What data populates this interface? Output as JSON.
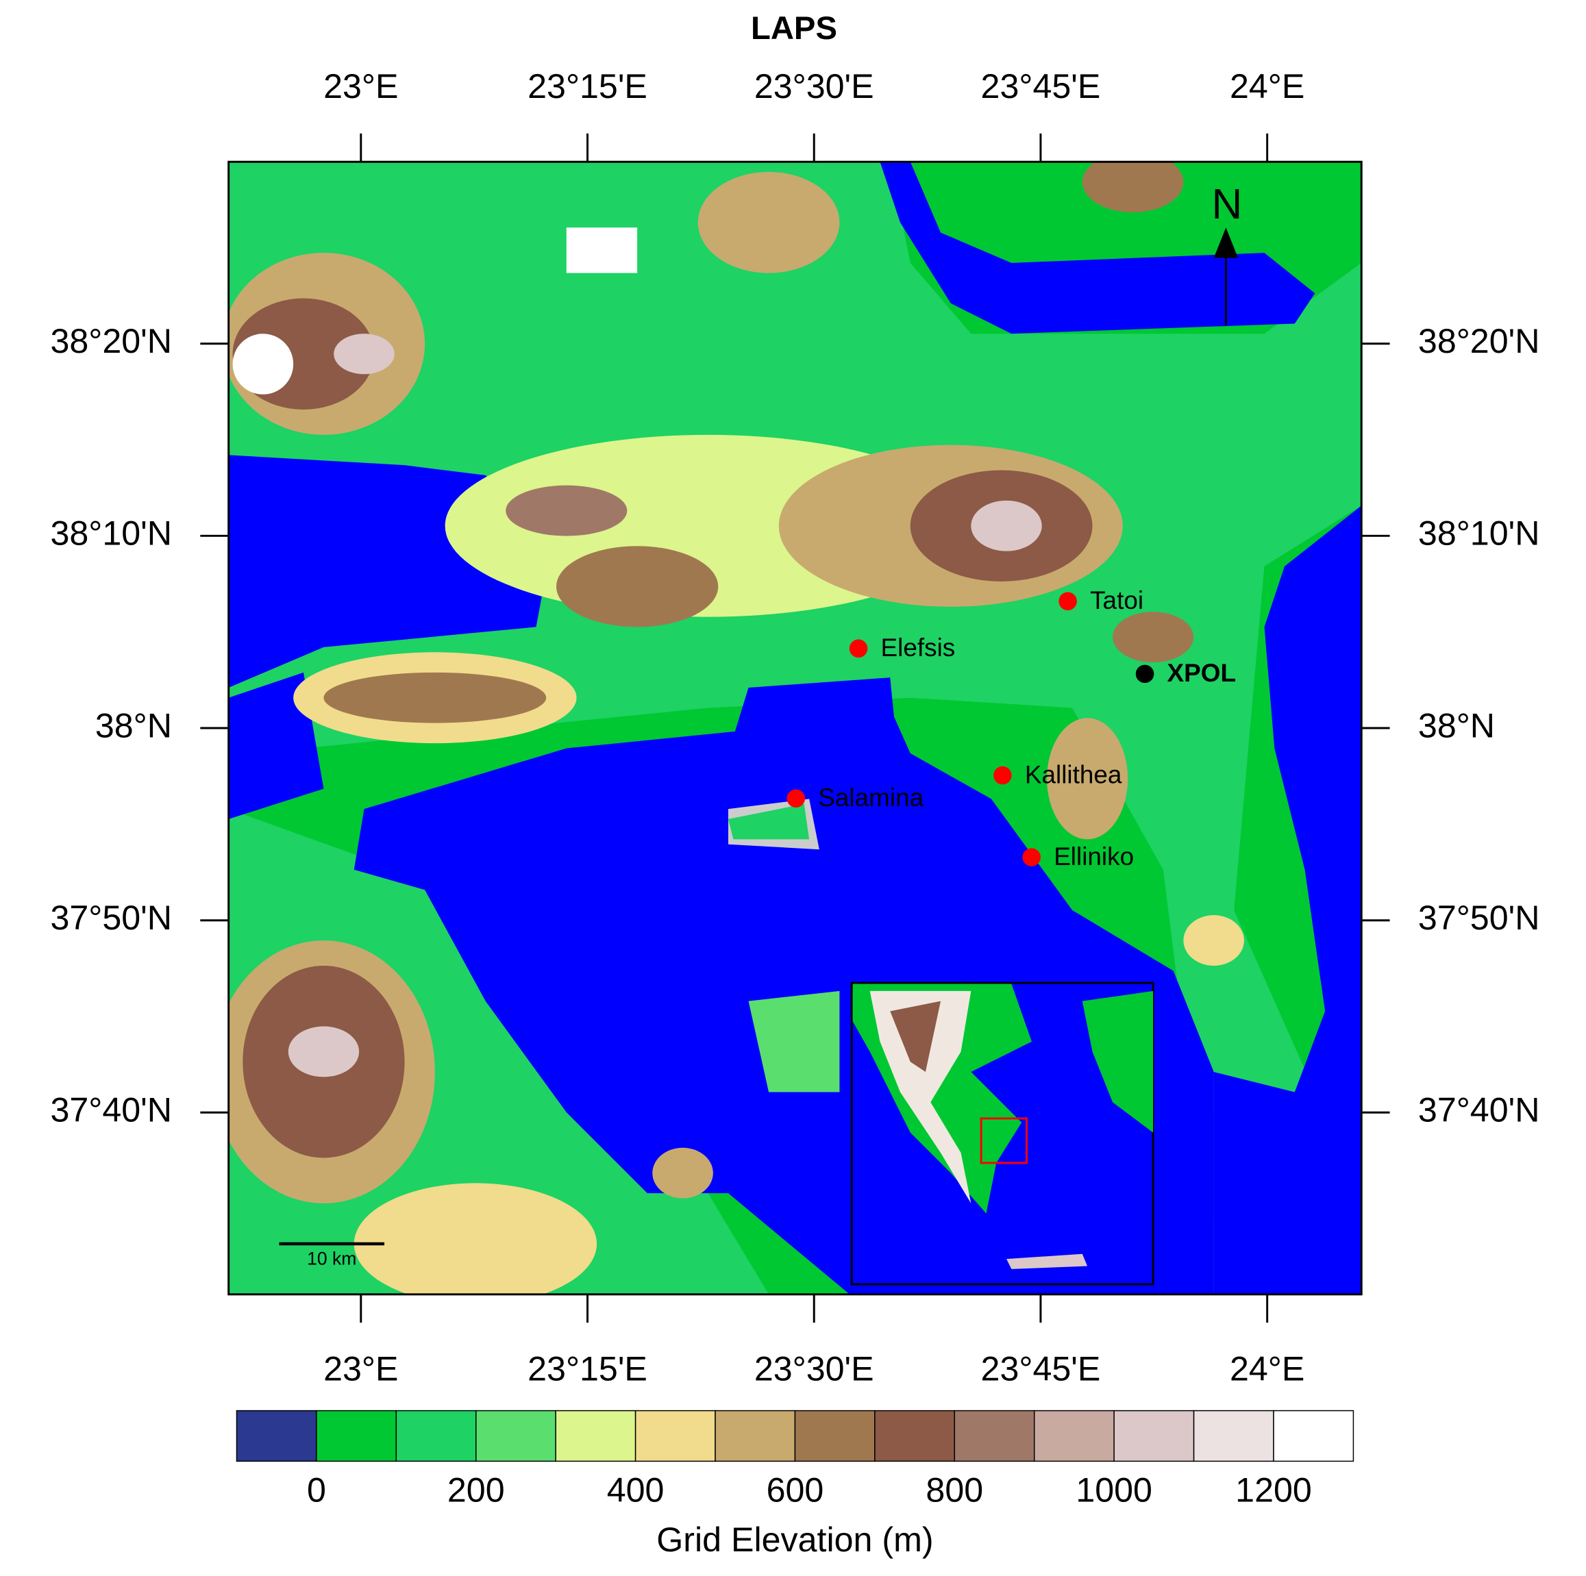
{
  "map": {
    "title": "LAPS",
    "xlim": [
      22.854,
      24.104
    ],
    "ylim": [
      37.509,
      38.491
    ],
    "xticks": [
      {
        "value": 23,
        "label": "23°E"
      },
      {
        "value": 23.25,
        "label": "23°15'E"
      },
      {
        "value": 23.5,
        "label": "23°30'E"
      },
      {
        "value": 23.75,
        "label": "23°45'E"
      },
      {
        "value": 24,
        "label": "24°E"
      }
    ],
    "yticks": [
      {
        "value": 38.3333,
        "label": "38°20'N"
      },
      {
        "value": 38.1667,
        "label": "38°10'N"
      },
      {
        "value": 38,
        "label": "38°N"
      },
      {
        "value": 37.8333,
        "label": "37°50'N"
      },
      {
        "value": 37.6667,
        "label": "37°40'N"
      }
    ],
    "stations": [
      {
        "name": "Tatoi",
        "lon": 23.78,
        "lat": 38.11,
        "color": "#ff0000"
      },
      {
        "name": "Elefsis",
        "lon": 23.549,
        "lat": 38.069,
        "color": "#ff0000"
      },
      {
        "name": "XPOL",
        "lon": 23.865,
        "lat": 38.047,
        "color": "#000000"
      },
      {
        "name": "Kallithea",
        "lon": 23.708,
        "lat": 37.959,
        "color": "#ff0000"
      },
      {
        "name": "Salamina",
        "lon": 23.48,
        "lat": 37.939,
        "color": "#ff0000"
      },
      {
        "name": "Elliniko",
        "lon": 23.74,
        "lat": 37.888,
        "color": "#ff0000"
      }
    ],
    "north": "N",
    "scale_bar": "10 km",
    "colorbar": {
      "title": "Grid Elevation (m)",
      "range": [
        -100,
        1300
      ],
      "colors": [
        "#2b3990",
        "#00c832",
        "#1ed264",
        "#5ade6e",
        "#dcf58c",
        "#f0dc8c",
        "#c8aa6e",
        "#a07850",
        "#8c5a46",
        "#a07868",
        "#c8aaa0",
        "#dcc8c8",
        "#ece2e2",
        "#ffffff"
      ],
      "ticks": [
        0,
        200,
        400,
        600,
        800,
        1000,
        1200
      ]
    }
  }
}
